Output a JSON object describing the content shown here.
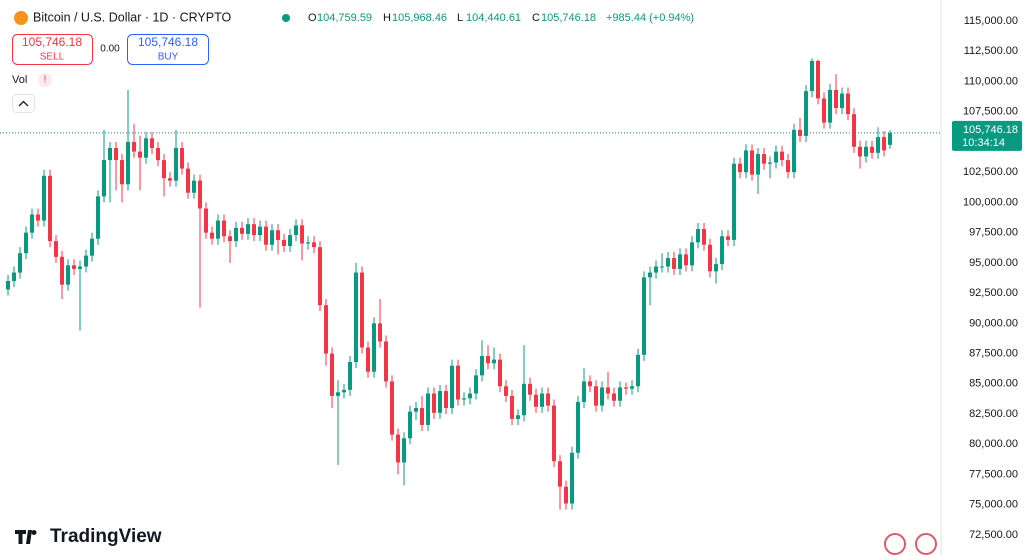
{
  "header": {
    "title": "Bitcoin / U.S. Dollar · 1D · CRYPTO",
    "o_label": "O",
    "o": "104,759.59",
    "h_label": "H",
    "h": "105,968.46",
    "l_label": "L",
    "l": "104,440.61",
    "c_label": "C",
    "c": "105,746.18",
    "change": "+985.44 (+0.94%)"
  },
  "trade": {
    "sell_price": "105,746.18",
    "sell": "SELL",
    "spread": "0.00",
    "buy_price": "105,746.18",
    "buy": "BUY"
  },
  "indicator": {
    "name": "Vol",
    "alert": "!"
  },
  "price_tag": {
    "price": "105,746.18",
    "countdown": "10:34:14"
  },
  "brand": "TradingView",
  "chart_data": {
    "type": "candlestick",
    "up_color": "#089981",
    "down_color": "#f23645",
    "grid": false,
    "last_price_line": true,
    "ylim": [
      72500,
      115000
    ],
    "yticks": [
      {
        "value": 72500,
        "label": "72,500.00"
      },
      {
        "value": 75000,
        "label": "75,000.00"
      },
      {
        "value": 77500,
        "label": "77,500.00"
      },
      {
        "value": 80000,
        "label": "80,000.00"
      },
      {
        "value": 82500,
        "label": "82,500.00"
      },
      {
        "value": 85000,
        "label": "85,000.00"
      },
      {
        "value": 87500,
        "label": "87,500.00"
      },
      {
        "value": 90000,
        "label": "90,000.00"
      },
      {
        "value": 92500,
        "label": "92,500.00"
      },
      {
        "value": 95000,
        "label": "95,000.00"
      },
      {
        "value": 97500,
        "label": "97,500.00"
      },
      {
        "value": 100000,
        "label": "100,000.00"
      },
      {
        "value": 102500,
        "label": "102,500.00"
      },
      {
        "value": 105000,
        "label": "105,000.00"
      },
      {
        "value": 107500,
        "label": "107,500.00"
      },
      {
        "value": 110000,
        "label": "110,000.00"
      },
      {
        "value": 112500,
        "label": "112,500.00"
      },
      {
        "value": 115000,
        "label": "115,000.00"
      }
    ],
    "ohlc": [
      [
        92800,
        94000,
        92300,
        93500
      ],
      [
        93500,
        94700,
        93000,
        94200
      ],
      [
        94200,
        96300,
        93700,
        95800
      ],
      [
        95800,
        98000,
        95300,
        97500
      ],
      [
        97500,
        99500,
        97000,
        99000
      ],
      [
        99000,
        99500,
        98000,
        98500
      ],
      [
        98500,
        102700,
        98000,
        102200
      ],
      [
        102200,
        102700,
        96300,
        96800
      ],
      [
        96800,
        97300,
        95000,
        95500
      ],
      [
        95500,
        96000,
        92000,
        93200
      ],
      [
        93200,
        95300,
        92700,
        94800
      ],
      [
        94800,
        95300,
        94000,
        94500
      ],
      [
        94500,
        95200,
        89400,
        94700
      ],
      [
        94700,
        96100,
        94200,
        95600
      ],
      [
        95600,
        97500,
        95100,
        97000
      ],
      [
        97000,
        101000,
        96500,
        100500
      ],
      [
        100500,
        106000,
        100000,
        103500
      ],
      [
        103500,
        105000,
        100000,
        104500
      ],
      [
        104500,
        105000,
        101000,
        103500
      ],
      [
        103500,
        104000,
        100000,
        101500
      ],
      [
        101500,
        109300,
        101000,
        105000
      ],
      [
        105000,
        106500,
        103700,
        104200
      ],
      [
        104200,
        105500,
        101000,
        103700
      ],
      [
        103700,
        105800,
        103200,
        105300
      ],
      [
        105300,
        105800,
        104000,
        104500
      ],
      [
        104500,
        105000,
        103000,
        103500
      ],
      [
        103500,
        104000,
        100500,
        102000
      ],
      [
        102000,
        102500,
        101300,
        101800
      ],
      [
        101800,
        106000,
        101300,
        104500
      ],
      [
        104500,
        105000,
        102300,
        102800
      ],
      [
        102800,
        103300,
        100300,
        100800
      ],
      [
        100800,
        102300,
        100300,
        101800
      ],
      [
        101800,
        102300,
        91300,
        99500
      ],
      [
        99500,
        100000,
        97000,
        97500
      ],
      [
        97500,
        98000,
        96500,
        97000
      ],
      [
        97000,
        99000,
        96500,
        98500
      ],
      [
        98500,
        99000,
        96700,
        97200
      ],
      [
        97200,
        97700,
        95000,
        96800
      ],
      [
        96800,
        98400,
        96300,
        97900
      ],
      [
        97900,
        98400,
        96900,
        97400
      ],
      [
        97400,
        98700,
        96900,
        98200
      ],
      [
        98200,
        98700,
        96800,
        97300
      ],
      [
        97300,
        98500,
        96800,
        98000
      ],
      [
        98000,
        98500,
        96000,
        96500
      ],
      [
        96500,
        98200,
        96000,
        97700
      ],
      [
        97700,
        98200,
        95700,
        96900
      ],
      [
        96900,
        97400,
        95900,
        96400
      ],
      [
        96400,
        97800,
        95900,
        97300
      ],
      [
        97300,
        98600,
        96800,
        98100
      ],
      [
        98100,
        98600,
        95200,
        96600
      ],
      [
        96600,
        97200,
        96100,
        96700
      ],
      [
        96700,
        97200,
        95800,
        96300
      ],
      [
        96300,
        96800,
        91000,
        91500
      ],
      [
        91500,
        92000,
        86500,
        87500
      ],
      [
        87500,
        88000,
        83000,
        84000
      ],
      [
        84000,
        85300,
        78300,
        84300
      ],
      [
        84300,
        85000,
        83800,
        84500
      ],
      [
        84500,
        87300,
        84000,
        86800
      ],
      [
        86800,
        95000,
        86300,
        94200
      ],
      [
        94200,
        94700,
        87500,
        88000
      ],
      [
        88000,
        88500,
        85500,
        86000
      ],
      [
        86000,
        90500,
        85500,
        90000
      ],
      [
        90000,
        92000,
        88000,
        88500
      ],
      [
        88500,
        89000,
        84700,
        85200
      ],
      [
        85200,
        85700,
        80300,
        80800
      ],
      [
        80800,
        81300,
        77500,
        78500
      ],
      [
        78500,
        81000,
        76600,
        80500
      ],
      [
        80500,
        83200,
        80000,
        82700
      ],
      [
        82700,
        83500,
        82000,
        83000
      ],
      [
        83000,
        84000,
        81100,
        81600
      ],
      [
        81600,
        84700,
        81100,
        84200
      ],
      [
        84200,
        84700,
        82100,
        82600
      ],
      [
        82600,
        84900,
        82100,
        84400
      ],
      [
        84400,
        84900,
        82500,
        83000
      ],
      [
        83000,
        87000,
        82500,
        86500
      ],
      [
        86500,
        87000,
        83200,
        83700
      ],
      [
        83700,
        84300,
        83200,
        83800
      ],
      [
        83800,
        84700,
        83300,
        84200
      ],
      [
        84200,
        86200,
        83700,
        85700
      ],
      [
        85700,
        88600,
        85200,
        87300
      ],
      [
        87300,
        88200,
        86200,
        86700
      ],
      [
        86700,
        88000,
        86200,
        87000
      ],
      [
        87000,
        87500,
        84300,
        84800
      ],
      [
        84800,
        85300,
        83500,
        84000
      ],
      [
        84000,
        84500,
        81600,
        82100
      ],
      [
        82100,
        82900,
        81600,
        82400
      ],
      [
        82400,
        88200,
        81900,
        85000
      ],
      [
        85000,
        85500,
        83600,
        84100
      ],
      [
        84100,
        84600,
        82600,
        83100
      ],
      [
        83100,
        84700,
        82600,
        84200
      ],
      [
        84200,
        84700,
        82700,
        83200
      ],
      [
        83200,
        83700,
        78100,
        78600
      ],
      [
        78600,
        79100,
        74600,
        76500
      ],
      [
        76500,
        77000,
        74600,
        75100
      ],
      [
        75100,
        79800,
        74600,
        79300
      ],
      [
        79300,
        84000,
        78800,
        83500
      ],
      [
        83500,
        86300,
        83000,
        85200
      ],
      [
        85200,
        85700,
        84300,
        84800
      ],
      [
        84800,
        85300,
        82700,
        83200
      ],
      [
        83200,
        85200,
        82700,
        84700
      ],
      [
        84700,
        86000,
        83700,
        84200
      ],
      [
        84200,
        84700,
        83100,
        83600
      ],
      [
        83600,
        85200,
        83100,
        84700
      ],
      [
        84700,
        85100,
        84100,
        84600
      ],
      [
        84600,
        85300,
        84100,
        84800
      ],
      [
        84800,
        87900,
        84300,
        87400
      ],
      [
        87400,
        94300,
        86900,
        93800
      ],
      [
        93800,
        94700,
        91500,
        94200
      ],
      [
        94200,
        95200,
        93700,
        94700
      ],
      [
        94700,
        95800,
        94200,
        94700
      ],
      [
        94700,
        95900,
        94200,
        95400
      ],
      [
        95400,
        95900,
        94000,
        94500
      ],
      [
        94500,
        96200,
        94000,
        95700
      ],
      [
        95700,
        96200,
        94300,
        94800
      ],
      [
        94800,
        97200,
        94300,
        96700
      ],
      [
        96700,
        98300,
        96200,
        97800
      ],
      [
        97800,
        98300,
        96000,
        96500
      ],
      [
        96500,
        97000,
        93800,
        94300
      ],
      [
        94300,
        95400,
        93300,
        94900
      ],
      [
        94900,
        97700,
        94400,
        97200
      ],
      [
        97200,
        97700,
        96400,
        96900
      ],
      [
        96900,
        103700,
        96400,
        103200
      ],
      [
        103200,
        103700,
        102000,
        102500
      ],
      [
        102500,
        104800,
        102000,
        104300
      ],
      [
        104300,
        104800,
        101800,
        102300
      ],
      [
        102300,
        104500,
        100700,
        104000
      ],
      [
        104000,
        104500,
        102700,
        103200
      ],
      [
        103200,
        103800,
        102000,
        103300
      ],
      [
        103300,
        104700,
        102800,
        104200
      ],
      [
        104200,
        104700,
        103000,
        103500
      ],
      [
        103500,
        104000,
        102000,
        102500
      ],
      [
        102500,
        106500,
        102000,
        106000
      ],
      [
        106000,
        107000,
        105000,
        105500
      ],
      [
        105500,
        109700,
        105000,
        109200
      ],
      [
        109200,
        111900,
        108700,
        111700
      ],
      [
        111700,
        111800,
        108100,
        108600
      ],
      [
        108600,
        109100,
        106100,
        106600
      ],
      [
        106600,
        109800,
        106100,
        109300
      ],
      [
        109300,
        110600,
        107300,
        107800
      ],
      [
        107800,
        109500,
        107300,
        109000
      ],
      [
        109000,
        109500,
        106800,
        107300
      ],
      [
        107300,
        107800,
        104100,
        104600
      ],
      [
        104600,
        105100,
        102800,
        103800
      ],
      [
        103800,
        105100,
        103300,
        104600
      ],
      [
        104600,
        105100,
        103600,
        104100
      ],
      [
        104100,
        106200,
        103600,
        105400
      ],
      [
        105400,
        105900,
        103800,
        104300
      ],
      [
        104759.59,
        105968.46,
        104440.61,
        105746.18
      ]
    ]
  }
}
